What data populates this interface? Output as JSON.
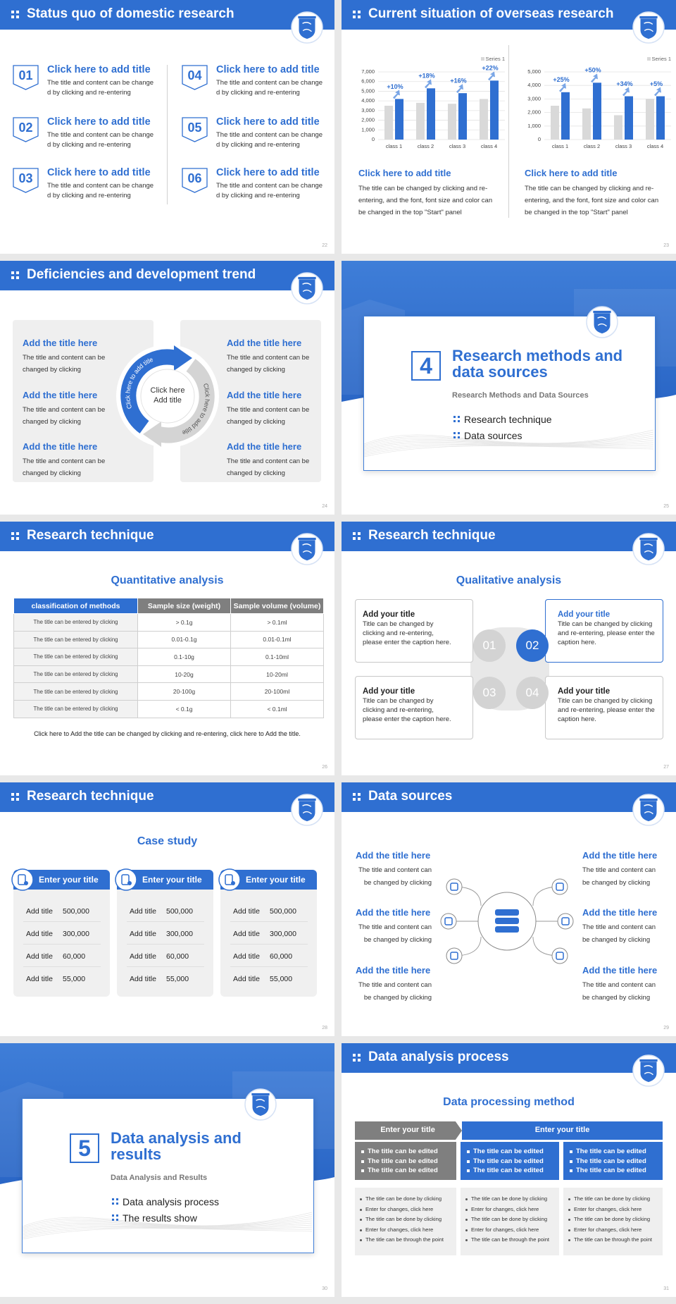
{
  "slides": [
    {
      "layout": "domestic",
      "title": "Status quo of domestic research",
      "page": "22",
      "items": [
        {
          "num": "01",
          "title": "Click here to add title",
          "text": "The title and content can be changed by clicking and re-entering"
        },
        {
          "num": "02",
          "title": "Click here to add title",
          "text": "The title and content can be changed by clicking and re-entering"
        },
        {
          "num": "03",
          "title": "Click here to add title",
          "text": "The title and content can be changed by clicking and re-entering"
        },
        {
          "num": "04",
          "title": "Click here to add title",
          "text": "The title and content can be changed by clicking and re-entering"
        },
        {
          "num": "05",
          "title": "Click here to add title",
          "text": "The title and content can be changed by clicking and re-entering"
        },
        {
          "num": "06",
          "title": "Click here to add title",
          "text": "The title and content can be changed by clicking and re-entering"
        }
      ]
    },
    {
      "layout": "overseas",
      "title": "Current situation of overseas research",
      "page": "23",
      "charts": [
        {
          "type": "bar",
          "categories": [
            "class 1",
            "class 2",
            "class 3",
            "class 4"
          ],
          "series": [
            {
              "name": "Series 1",
              "color": "#d9d9d9",
              "values": [
                3500,
                3800,
                3700,
                4200
              ]
            },
            {
              "color": "#2f6fd1",
              "values": [
                4200,
                5300,
                4800,
                6100
              ]
            }
          ],
          "annotations": [
            "+10%",
            "+18%",
            "+16%",
            "+22%"
          ],
          "ylim": [
            0,
            7000
          ],
          "yticks": [
            0,
            {
              "value": 1000,
              "label": "1,000"
            },
            {
              "value": 2000,
              "label": "2,000"
            },
            {
              "value": 3000,
              "label": "3,000"
            },
            {
              "value": 4000,
              "label": "4,000"
            },
            {
              "value": 5000,
              "label": "5,000"
            },
            {
              "value": 6000,
              "label": "6,000"
            },
            {
              "value": 7000,
              "label": "7,000"
            }
          ],
          "grid": true
        },
        {
          "type": "bar",
          "categories": [
            "class 1",
            "class 2",
            "class 3",
            "class 4"
          ],
          "series": [
            {
              "name": "Series 1",
              "color": "#d9d9d9",
              "values": [
                2500,
                2300,
                1800,
                3000
              ]
            },
            {
              "color": "#2f6fd1",
              "values": [
                3500,
                4200,
                3200,
                3200
              ]
            }
          ],
          "annotations": [
            "+25%",
            "+50%",
            "+34%",
            "+5%"
          ],
          "ylim": [
            0,
            5000
          ],
          "yticks": [
            0,
            {
              "value": 1000,
              "label": "1,000"
            },
            {
              "value": 2000,
              "label": "2,000"
            },
            {
              "value": 3000,
              "label": "3,000"
            },
            {
              "value": 4000,
              "label": "4,000"
            },
            {
              "value": 5000,
              "label": "5,000"
            }
          ],
          "grid": true
        }
      ],
      "blocks": [
        {
          "title": "Click here to add title",
          "text": "The title can be changed by clicking and re-entering, and the font, font size and color can be changed in the top \"Start\" panel"
        },
        {
          "title": "Click here to add title",
          "text": "The title can be changed by clicking and re-entering, and the font, font size and color can be changed in the top \"Start\" panel"
        }
      ]
    },
    {
      "layout": "deficiencies",
      "title": "Deficiencies and development trend",
      "page": "24",
      "center": "Click here Add title",
      "arc_texts": [
        "Click here to add title",
        "Click here to add title"
      ],
      "left": [
        {
          "title": "Add the title here",
          "text": "The title and content can be changed by clicking"
        },
        {
          "title": "Add the title here",
          "text": "The title and content can be changed by clicking"
        },
        {
          "title": "Add the title here",
          "text": "The title and content can be changed by clicking"
        }
      ],
      "right": [
        {
          "title": "Add the title here",
          "text": "The title and content can be changed by clicking"
        },
        {
          "title": "Add the title here",
          "text": "The title and content can be changed by clicking"
        },
        {
          "title": "Add the title here",
          "text": "The title and content can be changed by clicking"
        }
      ]
    },
    {
      "layout": "section",
      "num": "4",
      "title": "Research methods and data sources",
      "subtitle": "Research Methods and Data Sources",
      "bullets": [
        "Research technique",
        "Data sources"
      ],
      "page": "25"
    },
    {
      "layout": "quantitative",
      "title": "Research technique",
      "heading": "Quantitative analysis",
      "page": "26",
      "table": {
        "header": [
          "classification of methods",
          "Sample size (weight)",
          "Sample volume (volume)"
        ],
        "rows": [
          [
            "The title can be entered by clicking",
            "> 0.1g",
            "> 0.1ml"
          ],
          [
            "The title can be entered by clicking",
            "0.01-0.1g",
            "0.01-0.1ml"
          ],
          [
            "The title can be entered by clicking",
            "0.1-10g",
            "0.1-10ml"
          ],
          [
            "The title can be entered by clicking",
            "10-20g",
            "10-20ml"
          ],
          [
            "The title can be entered by clicking",
            "20-100g",
            "20-100ml"
          ],
          [
            "The title can be entered by clicking",
            "< 0.1g",
            "< 0.1ml"
          ]
        ]
      },
      "footer": "Click here to Add the title can be changed by clicking and re-entering, click here to Add the title."
    },
    {
      "layout": "qualitative",
      "title": "Research technique",
      "heading": "Qualitative analysis",
      "page": "27",
      "boxes": [
        {
          "title": "Add your title",
          "text": "Title can be changed by clicking and re-entering, please enter the caption here."
        },
        {
          "title": "Add your title",
          "text": "Title can be changed by clicking and re-entering, please enter the caption here."
        },
        {
          "title": "Add your title",
          "text": "Title can be changed by clicking and re-entering, please enter the caption here."
        },
        {
          "title": "Add your title",
          "text": "Title can be changed by clicking and re-entering, please enter the caption here."
        }
      ],
      "nums": [
        "01",
        "02",
        "03",
        "04"
      ]
    },
    {
      "layout": "case",
      "title": "Research technique",
      "heading": "Case study",
      "page": "28",
      "cards": [
        {
          "title": "Enter your title",
          "rows": [
            [
              "Add title",
              "500,000"
            ],
            [
              "Add title",
              "300,000"
            ],
            [
              "Add title",
              "60,000"
            ],
            [
              "Add title",
              "55,000"
            ]
          ]
        },
        {
          "title": "Enter your title",
          "rows": [
            [
              "Add title",
              "500,000"
            ],
            [
              "Add title",
              "300,000"
            ],
            [
              "Add title",
              "60,000"
            ],
            [
              "Add title",
              "55,000"
            ]
          ]
        },
        {
          "title": "Enter your title",
          "rows": [
            [
              "Add title",
              "500,000"
            ],
            [
              "Add title",
              "300,000"
            ],
            [
              "Add title",
              "60,000"
            ],
            [
              "Add title",
              "55,000"
            ]
          ]
        }
      ]
    },
    {
      "layout": "sources",
      "title": "Data sources",
      "page": "29",
      "left": [
        {
          "title": "Add the title here",
          "text": "The title and content can be changed by clicking"
        },
        {
          "title": "Add the title here",
          "text": "The title and content can be changed by clicking"
        },
        {
          "title": "Add the title here",
          "text": "The title and content can be changed by clicking"
        }
      ],
      "right": [
        {
          "title": "Add the title here",
          "text": "The title and content can be changed by clicking"
        },
        {
          "title": "Add the title here",
          "text": "The title and content can be changed by clicking"
        },
        {
          "title": "Add the title here",
          "text": "The title and content can be changed by clicking"
        }
      ]
    },
    {
      "layout": "section",
      "num": "5",
      "title": "Data analysis and results",
      "subtitle": "Data Analysis and Results",
      "bullets": [
        "Data analysis process",
        "The results show"
      ],
      "page": "30"
    },
    {
      "layout": "process",
      "title": "Data analysis process",
      "heading": "Data processing method",
      "page": "31",
      "headers": [
        "Enter your title",
        "Enter your title"
      ],
      "columns": [
        {
          "top": [
            "The title can be edited",
            "The title can be edited",
            "The title can be edited"
          ],
          "bottom": [
            "The title can be done by clicking",
            "Enter for changes, click here",
            "The title can be done by clicking",
            "Enter for changes, click here",
            "The title can be through the point"
          ]
        },
        {
          "top": [
            "The title can be edited",
            "The title can be edited",
            "The title can be edited"
          ],
          "bottom": [
            "The title can be done by clicking",
            "Enter for changes, click here",
            "The title can be done by clicking",
            "Enter for changes, click here",
            "The title can be through the point"
          ]
        },
        {
          "top": [
            "The title can be edited",
            "The title can be edited",
            "The title can be edited"
          ],
          "bottom": [
            "The title can be done by clicking",
            "Enter for changes, click here",
            "The title can be done by clicking",
            "Enter for changes, click here",
            "The title can be through the point"
          ]
        }
      ]
    }
  ]
}
